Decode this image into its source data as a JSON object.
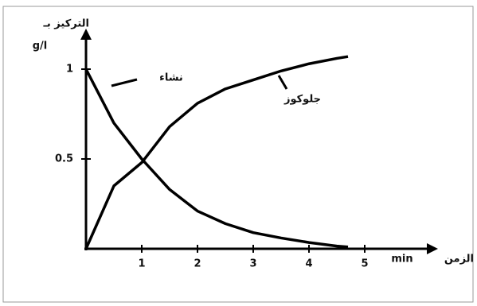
{
  "chart_data": {
    "type": "line",
    "y_label": "التركيز بـ",
    "y_unit": "g/l",
    "x_label": "الزمن",
    "x_unit": "min",
    "x": [
      0,
      0.5,
      1,
      1.5,
      2,
      2.5,
      3,
      3.5,
      4,
      4.5,
      4.7
    ],
    "series": [
      {
        "name": "نشاء",
        "color": "#000000",
        "values": [
          1,
          0.7,
          0.5,
          0.33,
          0.21,
          0.14,
          0.09,
          0.06,
          0.035,
          0.015,
          0.01
        ]
      },
      {
        "name": "جلوكوز",
        "color": "#000000",
        "values": [
          0,
          0.35,
          0.48,
          0.68,
          0.81,
          0.89,
          0.94,
          0.99,
          1.03,
          1.06,
          1.07
        ]
      }
    ],
    "xlim": [
      0,
      6
    ],
    "xticks": [
      1,
      2,
      3,
      4,
      5
    ],
    "ylim": [
      0,
      1.1
    ],
    "yticks": [
      0.5,
      1
    ]
  }
}
